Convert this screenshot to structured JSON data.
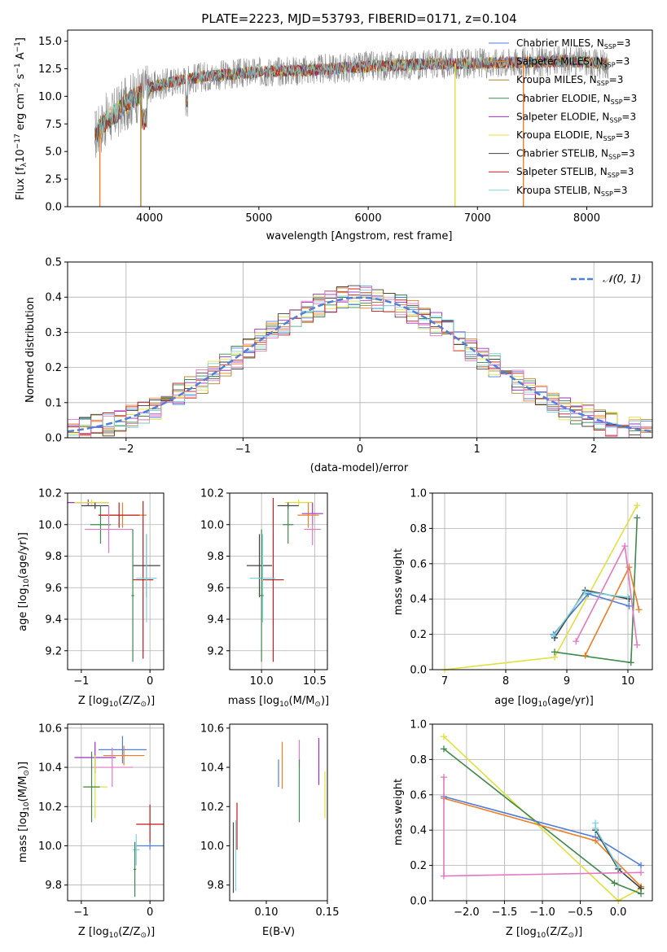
{
  "colors": {
    "chabrier_miles": "#4f7fd9",
    "salpeter_miles": "#ee7d26",
    "kroupa_miles": "#a8882e",
    "chabrier_elodie": "#3f8a4a",
    "salpeter_elodie": "#9b30c0",
    "kroupa_elodie": "#e0e040",
    "chabrier_stelib": "#404040",
    "salpeter_stelib": "#c01a1a",
    "kroupa_stelib": "#7ed3e0",
    "pink": "#e377c2",
    "gray_spec": "#808080",
    "normal": "#4f7fd9"
  },
  "chart_data": [
    {
      "id": "spectrum",
      "type": "line",
      "title": "PLATE=2223, MJD=53793, FIBERID=0171, z=0.104",
      "xlabel": "wavelength [Angstrom, rest frame]",
      "ylabel": "Flux [f",
      "ylabel_sub": "λ",
      "ylabel_rest": "10",
      "ylabel_exp1": "−17",
      "ylabel_unit": " erg cm",
      "ylabel_exp2": "−2",
      "ylabel_unit2": " s",
      "ylabel_exp3": "−1",
      "ylabel_unit3": " A",
      "ylabel_exp4": "−1",
      "ylabel_end": "]",
      "xlim": [
        3250,
        8600
      ],
      "ylim": [
        0,
        16
      ],
      "xticks": [
        "4000",
        "5000",
        "6000",
        "7000",
        "8000"
      ],
      "yticks": [
        "0.0",
        "2.5",
        "5.0",
        "7.5",
        "10.0",
        "12.5",
        "15.0"
      ],
      "legend": [
        {
          "name": "Chabrier MILES, N",
          "sub": "SSP",
          "tail": "=3",
          "key": "chabrier_miles"
        },
        {
          "name": "Salpeter MILES, N",
          "sub": "SSP",
          "tail": "=3",
          "key": "salpeter_miles"
        },
        {
          "name": "Kroupa MILES, N",
          "sub": "SSP",
          "tail": "=3",
          "key": "kroupa_miles"
        },
        {
          "name": "Chabrier ELODIE, N",
          "sub": "SSP",
          "tail": "=3",
          "key": "chabrier_elodie"
        },
        {
          "name": "Salpeter ELODIE, N",
          "sub": "SSP",
          "tail": "=3",
          "key": "salpeter_elodie"
        },
        {
          "name": "Kroupa ELODIE, N",
          "sub": "SSP",
          "tail": "=3",
          "key": "kroupa_elodie"
        },
        {
          "name": "Chabrier STELIB, N",
          "sub": "SSP",
          "tail": "=3",
          "key": "chabrier_stelib"
        },
        {
          "name": "Salpeter STELIB, N",
          "sub": "SSP",
          "tail": "=3",
          "key": "salpeter_stelib"
        },
        {
          "name": "Kroupa STELIB, N",
          "sub": "SSP",
          "tail": "=3",
          "key": "kroupa_stelib"
        }
      ],
      "continuum": [
        [
          3500,
          6.5
        ],
        [
          3600,
          7.8
        ],
        [
          3700,
          8.5
        ],
        [
          3800,
          9.5
        ],
        [
          3900,
          10.1
        ],
        [
          4000,
          10.8
        ],
        [
          4200,
          11.3
        ],
        [
          4500,
          11.8
        ],
        [
          5000,
          12.2
        ],
        [
          5500,
          12.4
        ],
        [
          6000,
          12.7
        ],
        [
          6500,
          12.9
        ],
        [
          7000,
          13.0
        ],
        [
          7500,
          13.1
        ],
        [
          7800,
          13.2
        ],
        [
          8000,
          13.1
        ],
        [
          8200,
          12.9
        ]
      ],
      "drops": [
        {
          "x": 3545,
          "key": "salpeter_miles"
        },
        {
          "x": 3920,
          "key": "kroupa_miles"
        },
        {
          "x": 6795,
          "key": "kroupa_elodie"
        },
        {
          "x": 7420,
          "key": "salpeter_miles"
        }
      ]
    },
    {
      "id": "residuals",
      "type": "line",
      "xlabel": "(data-model)/error",
      "ylabel": "Normed distribution",
      "xlim": [
        -2.5,
        2.5
      ],
      "ylim": [
        0,
        0.5
      ],
      "xticks": [
        "−2",
        "−1",
        "0",
        "1",
        "2"
      ],
      "yticks": [
        "0.0",
        "0.1",
        "0.2",
        "0.3",
        "0.4",
        "0.5"
      ],
      "legend_label": "𝒩(0, 1)",
      "normal": {
        "mean": 0,
        "sigma": 1
      }
    },
    {
      "id": "age_vs_Z",
      "type": "scatter",
      "xlabel": "Z [log",
      "xlabel_sub": "10",
      "xlabel_rest": "(Z/Z",
      "xlabel_sub2": "⊙",
      "xlabel_end": ")]",
      "ylabel": "age  [log",
      "ylabel_sub": "10",
      "ylabel_rest": "(age/yr)]",
      "xlim": [
        -1.2,
        0.2
      ],
      "ylim": [
        9.08,
        10.2
      ],
      "xticks": [
        "−1",
        "0"
      ],
      "yticks": [
        "9.2",
        "9.4",
        "9.6",
        "9.8",
        "10.0",
        "10.2"
      ],
      "points": [
        {
          "key": "salpeter_elodie",
          "x": -0.9,
          "xerr": 0.3,
          "y": 10.14,
          "yerr": 0.02
        },
        {
          "key": "kroupa_elodie",
          "x": -0.85,
          "xerr": 0.25,
          "y": 10.14,
          "yerr": 0.02
        },
        {
          "key": "chabrier_stelib",
          "x": -0.8,
          "xerr": 0.2,
          "y": 10.12,
          "yerr": 0.02
        },
        {
          "key": "chabrier_elodie",
          "x": -0.72,
          "xerr": 0.15,
          "y": 10.0,
          "yerr": 0.12
        },
        {
          "key": "salpeter_miles",
          "x": -0.4,
          "xerr": 0.35,
          "y": 10.06,
          "yerr": 0.08
        },
        {
          "key": "salpeter_stelib",
          "x": -0.45,
          "xerr": 0.3,
          "y": 10.06,
          "yerr": 0.08
        },
        {
          "key": "pink",
          "x": -0.6,
          "xerr": 0.35,
          "y": 9.97,
          "yerr": 0.15
        },
        {
          "key": "chabrier_stelib",
          "x": -0.05,
          "xerr": 0.2,
          "y": 9.74,
          "yerr": 0.2
        },
        {
          "key": "salpeter_stelib",
          "x": -0.1,
          "xerr": 0.15,
          "y": 9.65,
          "yerr": 0.5
        },
        {
          "key": "kroupa_stelib",
          "x": -0.05,
          "xerr": 0.15,
          "y": 9.66,
          "yerr": 0.28
        },
        {
          "key": "chabrier_elodie",
          "x": -0.25,
          "xerr": 0.02,
          "y": 9.55,
          "yerr": 0.42
        }
      ]
    },
    {
      "id": "age_vs_mass",
      "type": "scatter",
      "xlabel": "mass [log",
      "xlabel_sub": "10",
      "xlabel_rest": "(M/M",
      "xlabel_sub2": "⊙",
      "xlabel_end": ")]",
      "xlim": [
        9.7,
        10.62
      ],
      "ylim": [
        9.08,
        10.2
      ],
      "xticks": [
        "10.0",
        "10.5"
      ],
      "yticks": [
        "9.2",
        "9.4",
        "9.6",
        "9.8",
        "10.0",
        "10.2"
      ],
      "points": [
        {
          "key": "kroupa_elodie",
          "x": 10.35,
          "xerr": 0.13,
          "y": 10.14,
          "yerr": 0.02
        },
        {
          "key": "chabrier_stelib",
          "x": 10.25,
          "xerr": 0.1,
          "y": 10.12,
          "yerr": 0.02
        },
        {
          "key": "chabrier_elodie",
          "x": 10.25,
          "xerr": 0.05,
          "y": 10.0,
          "yerr": 0.12
        },
        {
          "key": "salpeter_elodie",
          "x": 10.48,
          "xerr": 0.1,
          "y": 10.07,
          "yerr": 0.07
        },
        {
          "key": "salpeter_miles",
          "x": 10.44,
          "xerr": 0.1,
          "y": 10.06,
          "yerr": 0.08
        },
        {
          "key": "pink",
          "x": 10.48,
          "xerr": 0.08,
          "y": 9.97,
          "yerr": 0.1
        },
        {
          "key": "chabrier_stelib",
          "x": 9.98,
          "xerr": 0.12,
          "y": 9.74,
          "yerr": 0.2
        },
        {
          "key": "salpeter_stelib",
          "x": 10.11,
          "xerr": 0.1,
          "y": 9.65,
          "yerr": 0.52
        },
        {
          "key": "kroupa_stelib",
          "x": 10.01,
          "xerr": 0.12,
          "y": 9.66,
          "yerr": 0.28
        },
        {
          "key": "chabrier_elodie",
          "x": 10.0,
          "xerr": 0.02,
          "y": 9.55,
          "yerr": 0.42
        }
      ]
    },
    {
      "id": "weight_vs_age",
      "type": "line",
      "xlabel": "age  [log",
      "xlabel_sub": "10",
      "xlabel_rest": "(age/yr)]",
      "ylabel": "mass weight",
      "xlim": [
        6.8,
        10.4
      ],
      "ylim": [
        0,
        1
      ],
      "xticks": [
        "7",
        "8",
        "9",
        "10"
      ],
      "yticks": [
        "0.0",
        "0.2",
        "0.4",
        "0.6",
        "0.8",
        "1.0"
      ],
      "series": [
        {
          "key": "kroupa_elodie",
          "x": [
            7.0,
            8.8,
            10.15
          ],
          "y": [
            0.0,
            0.07,
            0.93
          ]
        },
        {
          "key": "chabrier_elodie",
          "x": [
            8.8,
            10.05,
            10.15
          ],
          "y": [
            0.1,
            0.04,
            0.86
          ]
        },
        {
          "key": "chabrier_miles",
          "x": [
            8.78,
            9.35,
            10.02
          ],
          "y": [
            0.2,
            0.43,
            0.36
          ]
        },
        {
          "key": "chabrier_stelib",
          "x": [
            8.8,
            9.3,
            10.02
          ],
          "y": [
            0.18,
            0.45,
            0.4
          ]
        },
        {
          "key": "salpeter_miles",
          "x": [
            9.3,
            10.02,
            10.18
          ],
          "y": [
            0.08,
            0.58,
            0.34
          ]
        },
        {
          "key": "pink",
          "x": [
            9.15,
            9.95,
            10.15
          ],
          "y": [
            0.16,
            0.7,
            0.14
          ]
        },
        {
          "key": "kroupa_stelib",
          "x": [
            8.78,
            9.3,
            10.0
          ],
          "y": [
            0.19,
            0.44,
            0.41
          ]
        }
      ]
    },
    {
      "id": "mass_vs_Z",
      "type": "scatter",
      "xlabel": "Z [log",
      "xlabel_sub": "10",
      "xlabel_rest": "(Z/Z",
      "xlabel_sub2": "⊙",
      "xlabel_end": ")]",
      "ylabel": "mass [log",
      "ylabel_sub": "10",
      "ylabel_rest": "(M/M",
      "ylabel_sub2": "⊙",
      "ylabel_end": ")]",
      "xlim": [
        -1.2,
        0.2
      ],
      "ylim": [
        9.72,
        10.62
      ],
      "xticks": [
        "−1",
        "0"
      ],
      "yticks": [
        "9.8",
        "10.0",
        "10.2",
        "10.4",
        "10.6"
      ],
      "points": [
        {
          "key": "chabrier_miles",
          "x": -0.4,
          "xerr": 0.35,
          "y": 10.49,
          "yerr": 0.07
        },
        {
          "key": "salpeter_miles",
          "x": -0.38,
          "xerr": 0.3,
          "y": 10.46,
          "yerr": 0.05
        },
        {
          "key": "salpeter_elodie",
          "x": -0.8,
          "xerr": 0.3,
          "y": 10.45,
          "yerr": 0.08
        },
        {
          "key": "pink",
          "x": -0.55,
          "xerr": 0.3,
          "y": 10.4,
          "yerr": 0.1
        },
        {
          "key": "kroupa_elodie",
          "x": -0.8,
          "xerr": 0.18,
          "y": 10.3,
          "yerr": 0.16
        },
        {
          "key": "chabrier_elodie",
          "x": -0.85,
          "xerr": 0.12,
          "y": 10.3,
          "yerr": 0.18
        },
        {
          "key": "salpeter_stelib",
          "x": 0.0,
          "xerr": 0.2,
          "y": 10.11,
          "yerr": 0.1
        },
        {
          "key": "chabrier_miles",
          "x": 0.0,
          "xerr": 0.2,
          "y": 10.0,
          "yerr": 0.02
        },
        {
          "key": "kroupa_stelib",
          "x": -0.2,
          "xerr": 0.05,
          "y": 9.98,
          "yerr": 0.08
        },
        {
          "key": "chabrier_elodie",
          "x": -0.22,
          "xerr": 0.02,
          "y": 9.88,
          "yerr": 0.14
        }
      ]
    },
    {
      "id": "mass_vs_ebv",
      "type": "scatter",
      "xlabel": "E(B-V)",
      "xlim": [
        0.07,
        0.15
      ],
      "ylim": [
        9.72,
        10.62
      ],
      "xticks": [
        "0.10",
        "0.15"
      ],
      "yticks": [
        "9.8",
        "10.0",
        "10.2",
        "10.4",
        "10.6"
      ],
      "points": [
        {
          "key": "pink",
          "x": 0.127,
          "y": 10.47,
          "yerr": 0.07
        },
        {
          "key": "salpeter_elodie",
          "x": 0.143,
          "y": 10.43,
          "yerr": 0.12
        },
        {
          "key": "salpeter_miles",
          "x": 0.113,
          "y": 10.41,
          "yerr": 0.12
        },
        {
          "key": "chabrier_miles",
          "x": 0.11,
          "y": 10.37,
          "yerr": 0.07
        },
        {
          "key": "chabrier_elodie",
          "x": 0.127,
          "y": 10.28,
          "yerr": 0.16
        },
        {
          "key": "kroupa_elodie",
          "x": 0.148,
          "y": 10.26,
          "yerr": 0.12
        },
        {
          "key": "salpeter_stelib",
          "x": 0.076,
          "y": 10.1,
          "yerr": 0.12
        },
        {
          "key": "chabrier_stelib",
          "x": 0.073,
          "y": 9.94,
          "yerr": 0.18
        },
        {
          "key": "kroupa_stelib",
          "x": 0.075,
          "y": 9.95,
          "yerr": 0.18
        }
      ]
    },
    {
      "id": "weight_vs_Z",
      "type": "line",
      "xlabel": "Z [log",
      "xlabel_sub": "10",
      "xlabel_rest": "(Z/Z",
      "xlabel_sub2": "⊙",
      "xlabel_end": ")]",
      "ylabel": "mass weight",
      "xlim": [
        -2.45,
        0.45
      ],
      "ylim": [
        0,
        1
      ],
      "xticks": [
        "−2.0",
        "−1.5",
        "−1.0",
        "−0.5",
        "0.0",
        "0.5"
      ],
      "yticks": [
        "0.0",
        "0.2",
        "0.4",
        "0.6",
        "0.8",
        "1.0"
      ],
      "series": [
        {
          "key": "kroupa_elodie",
          "x": [
            -2.3,
            0.0,
            0.3
          ],
          "y": [
            0.93,
            0.0,
            0.07
          ]
        },
        {
          "key": "chabrier_elodie",
          "x": [
            -2.3,
            -0.05,
            0.3
          ],
          "y": [
            0.86,
            0.1,
            0.04
          ]
        },
        {
          "key": "chabrier_miles",
          "x": [
            -2.3,
            -0.3,
            0.3
          ],
          "y": [
            0.59,
            0.36,
            0.2
          ]
        },
        {
          "key": "salpeter_miles",
          "x": [
            -2.3,
            -0.3,
            0.3
          ],
          "y": [
            0.58,
            0.34,
            0.08
          ]
        },
        {
          "key": "chabrier_stelib",
          "x": [
            -0.3,
            0.0,
            0.3
          ],
          "y": [
            0.4,
            0.18,
            0.07
          ]
        },
        {
          "key": "kroupa_stelib",
          "x": [
            -0.3,
            -0.3,
            0.0
          ],
          "y": [
            0.44,
            0.41,
            0.19
          ]
        },
        {
          "key": "pink",
          "x": [
            -2.3,
            -2.3,
            0.3
          ],
          "y": [
            0.7,
            0.14,
            0.16
          ]
        }
      ]
    }
  ]
}
